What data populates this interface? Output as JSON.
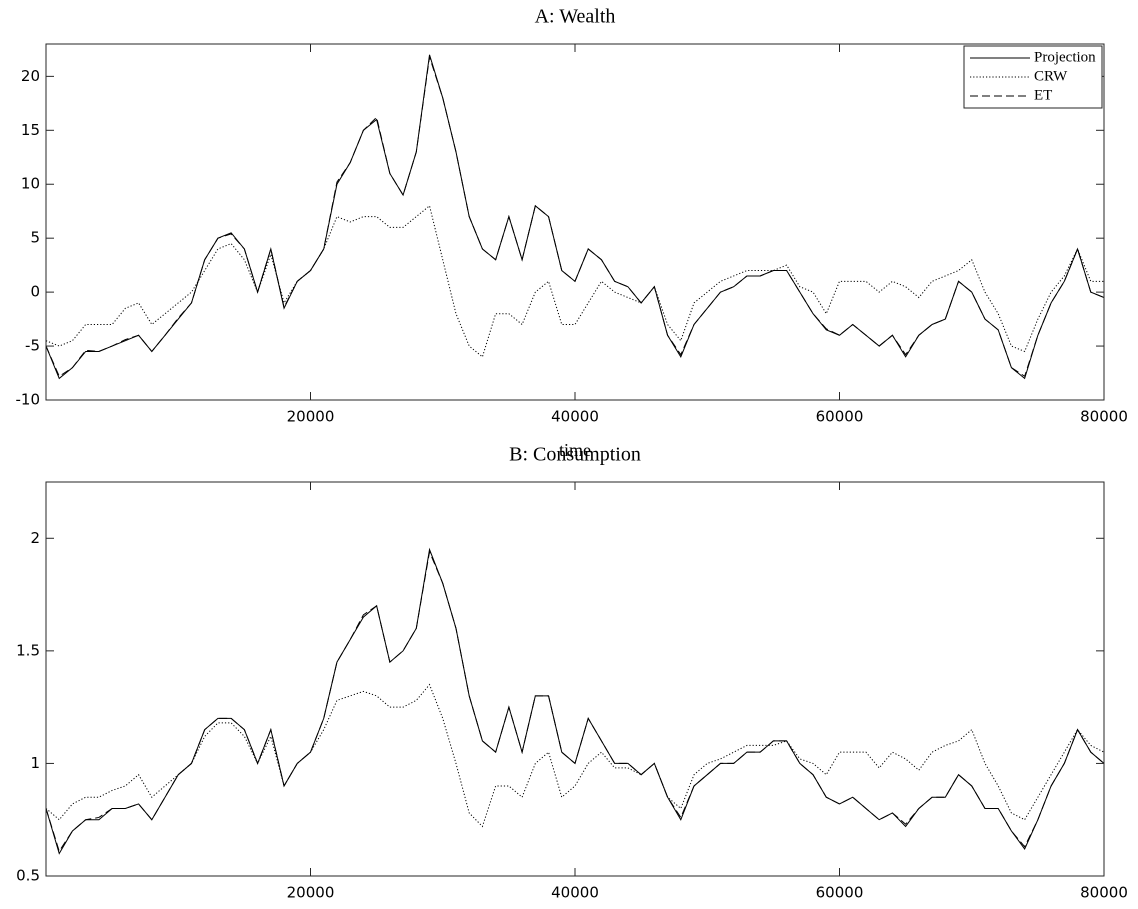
{
  "chart_data": [
    {
      "type": "line",
      "title": "A: Wealth",
      "xlabel": "time",
      "x": [
        0,
        1000,
        2000,
        3000,
        4000,
        5000,
        6000,
        7000,
        8000,
        9000,
        10000,
        11000,
        12000,
        13000,
        14000,
        15000,
        16000,
        17000,
        18000,
        19000,
        20000,
        21000,
        22000,
        23000,
        24000,
        25000,
        26000,
        27000,
        28000,
        29000,
        30000,
        31000,
        32000,
        33000,
        34000,
        35000,
        36000,
        37000,
        38000,
        39000,
        40000,
        41000,
        42000,
        43000,
        44000,
        45000,
        46000,
        47000,
        48000,
        49000,
        50000,
        51000,
        52000,
        53000,
        54000,
        55000,
        56000,
        57000,
        58000,
        59000,
        60000,
        61000,
        62000,
        63000,
        64000,
        65000,
        66000,
        67000,
        68000,
        69000,
        70000,
        71000,
        72000,
        73000,
        74000,
        75000,
        76000,
        77000,
        78000,
        79000,
        80000
      ],
      "series": [
        {
          "name": "Projection",
          "color": "#000000",
          "style": "solid",
          "values": [
            -5,
            -8,
            -7,
            -5.5,
            -5.5,
            -5,
            -4.5,
            -4,
            -5.5,
            -4,
            -2.5,
            -1,
            3,
            5,
            5.5,
            4,
            0,
            4,
            -1.5,
            1,
            2,
            4,
            10,
            12,
            15,
            16,
            11,
            9,
            13,
            22,
            18,
            13,
            7,
            4,
            3,
            7,
            3,
            8,
            7,
            2,
            1,
            4,
            3,
            1,
            0.5,
            -1,
            0.5,
            -4,
            -6,
            -3,
            -1.5,
            0,
            0.5,
            1.5,
            1.5,
            2,
            2,
            0,
            -2,
            -3.5,
            -4,
            -3,
            -4,
            -5,
            -4,
            -6,
            -4,
            -3,
            -2.5,
            1,
            0,
            -2.5,
            -3.5,
            -7,
            -8,
            -4,
            -1,
            1,
            4,
            0,
            -0.5
          ]
        },
        {
          "name": "CRW",
          "color": "#000000",
          "style": "dotted",
          "values": [
            -4.5,
            -5,
            -4.5,
            -3,
            -3,
            -3,
            -1.5,
            -1,
            -3,
            -2,
            -1,
            0,
            2,
            4,
            4.5,
            3,
            0,
            3.5,
            -1,
            1,
            2,
            4,
            7,
            6.5,
            7,
            7,
            6,
            6,
            7,
            8,
            3,
            -2,
            -5,
            -6,
            -2,
            -2,
            -3,
            0,
            1,
            -3,
            -3,
            -1,
            1,
            0,
            -0.5,
            -1,
            0.5,
            -3,
            -4.5,
            -1,
            0,
            1,
            1.5,
            2,
            2,
            2,
            2.5,
            0.5,
            0,
            -2,
            1,
            1,
            1,
            0,
            1,
            0.5,
            -0.5,
            1,
            1.5,
            2,
            3,
            0,
            -2,
            -5,
            -5.5,
            -2.5,
            0,
            1.5,
            4,
            1,
            1
          ]
        },
        {
          "name": "ET",
          "color": "#000000",
          "style": "dashed",
          "values": [
            -5,
            -7.8,
            -7,
            -5.4,
            -5.5,
            -5,
            -4.4,
            -4,
            -5.5,
            -4,
            -2.4,
            -1,
            3,
            5,
            5.4,
            4,
            0,
            4,
            -1.4,
            1,
            2,
            4,
            10.2,
            12,
            15,
            16.2,
            11,
            9,
            13,
            21.8,
            18,
            13,
            7,
            4,
            3,
            7,
            3,
            8,
            7,
            2,
            1,
            4,
            3,
            1,
            0.5,
            -1,
            0.5,
            -4,
            -5.8,
            -3,
            -1.5,
            0,
            0.5,
            1.5,
            1.5,
            2,
            2,
            0,
            -2,
            -3.4,
            -4,
            -3,
            -4,
            -5,
            -4,
            -5.8,
            -4,
            -3,
            -2.5,
            1,
            0,
            -2.5,
            -3.5,
            -7,
            -7.8,
            -4,
            -1,
            1,
            4,
            0,
            -0.5
          ]
        }
      ],
      "xlim": [
        0,
        80000
      ],
      "xticks": [
        20000,
        40000,
        60000,
        80000
      ],
      "ylim": [
        -10,
        23
      ],
      "yticks": [
        -10,
        -5,
        0,
        5,
        10,
        15,
        20
      ],
      "legend": "upper-right"
    },
    {
      "type": "line",
      "title": "B: Consumption",
      "x": [
        0,
        1000,
        2000,
        3000,
        4000,
        5000,
        6000,
        7000,
        8000,
        9000,
        10000,
        11000,
        12000,
        13000,
        14000,
        15000,
        16000,
        17000,
        18000,
        19000,
        20000,
        21000,
        22000,
        23000,
        24000,
        25000,
        26000,
        27000,
        28000,
        29000,
        30000,
        31000,
        32000,
        33000,
        34000,
        35000,
        36000,
        37000,
        38000,
        39000,
        40000,
        41000,
        42000,
        43000,
        44000,
        45000,
        46000,
        47000,
        48000,
        49000,
        50000,
        51000,
        52000,
        53000,
        54000,
        55000,
        56000,
        57000,
        58000,
        59000,
        60000,
        61000,
        62000,
        63000,
        64000,
        65000,
        66000,
        67000,
        68000,
        69000,
        70000,
        71000,
        72000,
        73000,
        74000,
        75000,
        76000,
        77000,
        78000,
        79000,
        80000
      ],
      "series": [
        {
          "name": "Projection",
          "color": "#000000",
          "style": "solid",
          "values": [
            0.8,
            0.6,
            0.7,
            0.75,
            0.75,
            0.8,
            0.8,
            0.82,
            0.75,
            0.85,
            0.95,
            1.0,
            1.15,
            1.2,
            1.2,
            1.15,
            1.0,
            1.15,
            0.9,
            1.0,
            1.05,
            1.2,
            1.45,
            1.55,
            1.65,
            1.7,
            1.45,
            1.5,
            1.6,
            1.95,
            1.8,
            1.6,
            1.3,
            1.1,
            1.05,
            1.25,
            1.05,
            1.3,
            1.3,
            1.05,
            1.0,
            1.2,
            1.1,
            1.0,
            1.0,
            0.95,
            1.0,
            0.85,
            0.75,
            0.9,
            0.95,
            1.0,
            1.0,
            1.05,
            1.05,
            1.1,
            1.1,
            1.0,
            0.95,
            0.85,
            0.82,
            0.85,
            0.8,
            0.75,
            0.78,
            0.72,
            0.8,
            0.85,
            0.85,
            0.95,
            0.9,
            0.8,
            0.8,
            0.7,
            0.62,
            0.75,
            0.9,
            1.0,
            1.15,
            1.05,
            1.0
          ]
        },
        {
          "name": "CRW",
          "color": "#000000",
          "style": "dotted",
          "values": [
            0.8,
            0.75,
            0.82,
            0.85,
            0.85,
            0.88,
            0.9,
            0.95,
            0.85,
            0.9,
            0.95,
            1.0,
            1.12,
            1.18,
            1.18,
            1.12,
            1.0,
            1.12,
            0.9,
            1.0,
            1.05,
            1.15,
            1.28,
            1.3,
            1.32,
            1.3,
            1.25,
            1.25,
            1.28,
            1.35,
            1.2,
            1.0,
            0.78,
            0.72,
            0.9,
            0.9,
            0.85,
            1.0,
            1.05,
            0.85,
            0.9,
            1.0,
            1.05,
            0.98,
            0.98,
            0.95,
            1.0,
            0.85,
            0.8,
            0.95,
            1.0,
            1.02,
            1.05,
            1.08,
            1.08,
            1.08,
            1.1,
            1.02,
            1.0,
            0.95,
            1.05,
            1.05,
            1.05,
            0.98,
            1.05,
            1.02,
            0.97,
            1.05,
            1.08,
            1.1,
            1.15,
            1.0,
            0.9,
            0.78,
            0.75,
            0.85,
            0.95,
            1.05,
            1.15,
            1.08,
            1.05
          ]
        },
        {
          "name": "ET",
          "color": "#000000",
          "style": "dashed",
          "values": [
            0.8,
            0.61,
            0.7,
            0.75,
            0.76,
            0.8,
            0.8,
            0.82,
            0.75,
            0.85,
            0.95,
            1.0,
            1.15,
            1.2,
            1.2,
            1.15,
            1.0,
            1.15,
            0.9,
            1.0,
            1.05,
            1.2,
            1.45,
            1.55,
            1.66,
            1.7,
            1.45,
            1.5,
            1.6,
            1.94,
            1.8,
            1.6,
            1.3,
            1.1,
            1.05,
            1.25,
            1.05,
            1.3,
            1.3,
            1.05,
            1.0,
            1.2,
            1.1,
            1.0,
            1.0,
            0.95,
            1.0,
            0.85,
            0.76,
            0.9,
            0.95,
            1.0,
            1.0,
            1.05,
            1.05,
            1.1,
            1.1,
            1.0,
            0.95,
            0.85,
            0.82,
            0.85,
            0.8,
            0.75,
            0.78,
            0.73,
            0.8,
            0.85,
            0.85,
            0.95,
            0.9,
            0.8,
            0.8,
            0.7,
            0.63,
            0.75,
            0.9,
            1.0,
            1.15,
            1.05,
            1.0
          ]
        }
      ],
      "xlim": [
        0,
        80000
      ],
      "xticks": [
        20000,
        40000,
        60000,
        80000
      ],
      "ylim": [
        0.5,
        2.25
      ],
      "yticks": [
        0.5,
        1,
        1.5,
        2
      ]
    }
  ]
}
